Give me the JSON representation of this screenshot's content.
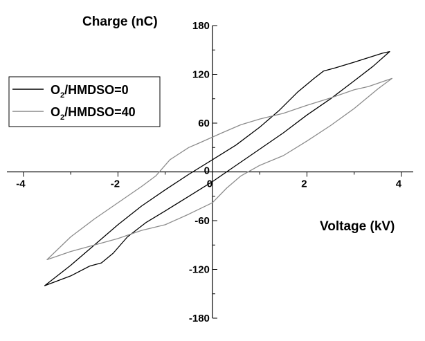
{
  "chart_data": {
    "type": "line",
    "title": "",
    "xlabel": "Voltage (kV)",
    "ylabel": "Charge (nC)",
    "xlim": [
      -4.35,
      4.25
    ],
    "ylim": [
      -180,
      180
    ],
    "x_ticks": [
      -4,
      -2,
      0,
      2,
      4
    ],
    "x_tick_labels": [
      "-4",
      "-2",
      "0",
      "2",
      "4"
    ],
    "y_ticks": [
      -180,
      -120,
      -60,
      0,
      60,
      120,
      180
    ],
    "y_tick_labels": [
      "-180",
      "-120",
      "-60",
      "0",
      "60",
      "120",
      "180"
    ],
    "grid": false,
    "legend_position": "upper-left",
    "legend": [
      {
        "prefix": "O",
        "sub": "2",
        "suffix": "/HMDSO=0",
        "color": "#000000"
      },
      {
        "prefix": "O",
        "sub": "2",
        "suffix": "/HMDSO=40",
        "color": "#8c8c8c"
      }
    ],
    "series": [
      {
        "name": "O2/HMDSO=0",
        "color": "#000000",
        "points": [
          [
            -3.55,
            -140
          ],
          [
            -3.0,
            -128
          ],
          [
            -2.6,
            -116
          ],
          [
            -2.35,
            -112
          ],
          [
            -2.1,
            -100
          ],
          [
            -1.8,
            -80
          ],
          [
            -1.4,
            -62
          ],
          [
            -1.0,
            -48
          ],
          [
            -0.5,
            -30
          ],
          [
            0.0,
            -12
          ],
          [
            0.5,
            8
          ],
          [
            1.0,
            28
          ],
          [
            1.5,
            48
          ],
          [
            2.0,
            70
          ],
          [
            2.5,
            90
          ],
          [
            3.0,
            112
          ],
          [
            3.4,
            130
          ],
          [
            3.75,
            148
          ],
          [
            3.6,
            146
          ],
          [
            3.0,
            135
          ],
          [
            2.6,
            128
          ],
          [
            2.35,
            124
          ],
          [
            2.15,
            115
          ],
          [
            1.8,
            98
          ],
          [
            1.4,
            75
          ],
          [
            1.0,
            55
          ],
          [
            0.5,
            33
          ],
          [
            0.0,
            15
          ],
          [
            -0.5,
            -3
          ],
          [
            -1.0,
            -22
          ],
          [
            -1.5,
            -42
          ],
          [
            -2.0,
            -65
          ],
          [
            -2.5,
            -90
          ],
          [
            -3.0,
            -115
          ],
          [
            -3.55,
            -140
          ]
        ]
      },
      {
        "name": "O2/HMDSO=40",
        "color": "#8c8c8c",
        "points": [
          [
            -3.5,
            -108
          ],
          [
            -3.0,
            -98
          ],
          [
            -2.5,
            -90
          ],
          [
            -2.0,
            -82
          ],
          [
            -1.5,
            -72
          ],
          [
            -1.0,
            -65
          ],
          [
            -0.5,
            -52
          ],
          [
            0.0,
            -38
          ],
          [
            0.3,
            -20
          ],
          [
            0.6,
            -5
          ],
          [
            1.0,
            8
          ],
          [
            1.5,
            20
          ],
          [
            2.0,
            38
          ],
          [
            2.5,
            57
          ],
          [
            3.0,
            78
          ],
          [
            3.5,
            102
          ],
          [
            3.8,
            115
          ],
          [
            3.3,
            105
          ],
          [
            3.0,
            101
          ],
          [
            2.5,
            91
          ],
          [
            2.0,
            82
          ],
          [
            1.5,
            72
          ],
          [
            1.0,
            65
          ],
          [
            0.6,
            58
          ],
          [
            0.2,
            48
          ],
          [
            -0.3,
            35
          ],
          [
            -0.5,
            30
          ],
          [
            -0.9,
            15
          ],
          [
            -1.2,
            -5
          ],
          [
            -1.5,
            -18
          ],
          [
            -2.0,
            -38
          ],
          [
            -2.5,
            -58
          ],
          [
            -3.0,
            -80
          ],
          [
            -3.5,
            -108
          ]
        ]
      }
    ]
  }
}
